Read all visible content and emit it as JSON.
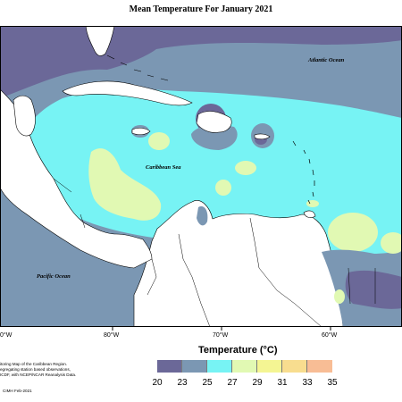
{
  "title": "Mean Temperature For January 2021",
  "map": {
    "labels": {
      "atlantic": "Atlantic Ocean",
      "caribbean": "Caribbean Sea",
      "pacific": "Pacific Ocean"
    },
    "longitude_labels": [
      "0°W",
      "80°W",
      "70°W",
      "60°W"
    ]
  },
  "legend": {
    "title": "Temperature (°C)",
    "ticks": [
      "20",
      "23",
      "25",
      "27",
      "29",
      "31",
      "33",
      "35"
    ],
    "colors": [
      "#6b6898",
      "#7b97b3",
      "#77f3f4",
      "#e1f9b3",
      "#f4f593",
      "#f8dd8f",
      "#f8bd95"
    ]
  },
  "notes": {
    "line1": "itoring Map of the Caribbean Region.",
    "line2": "egregating station based observations,",
    "line3": "ICDF, with NCEP/NCAR Reanalysis Data.",
    "credit": "CIMH Feb-2021"
  }
}
